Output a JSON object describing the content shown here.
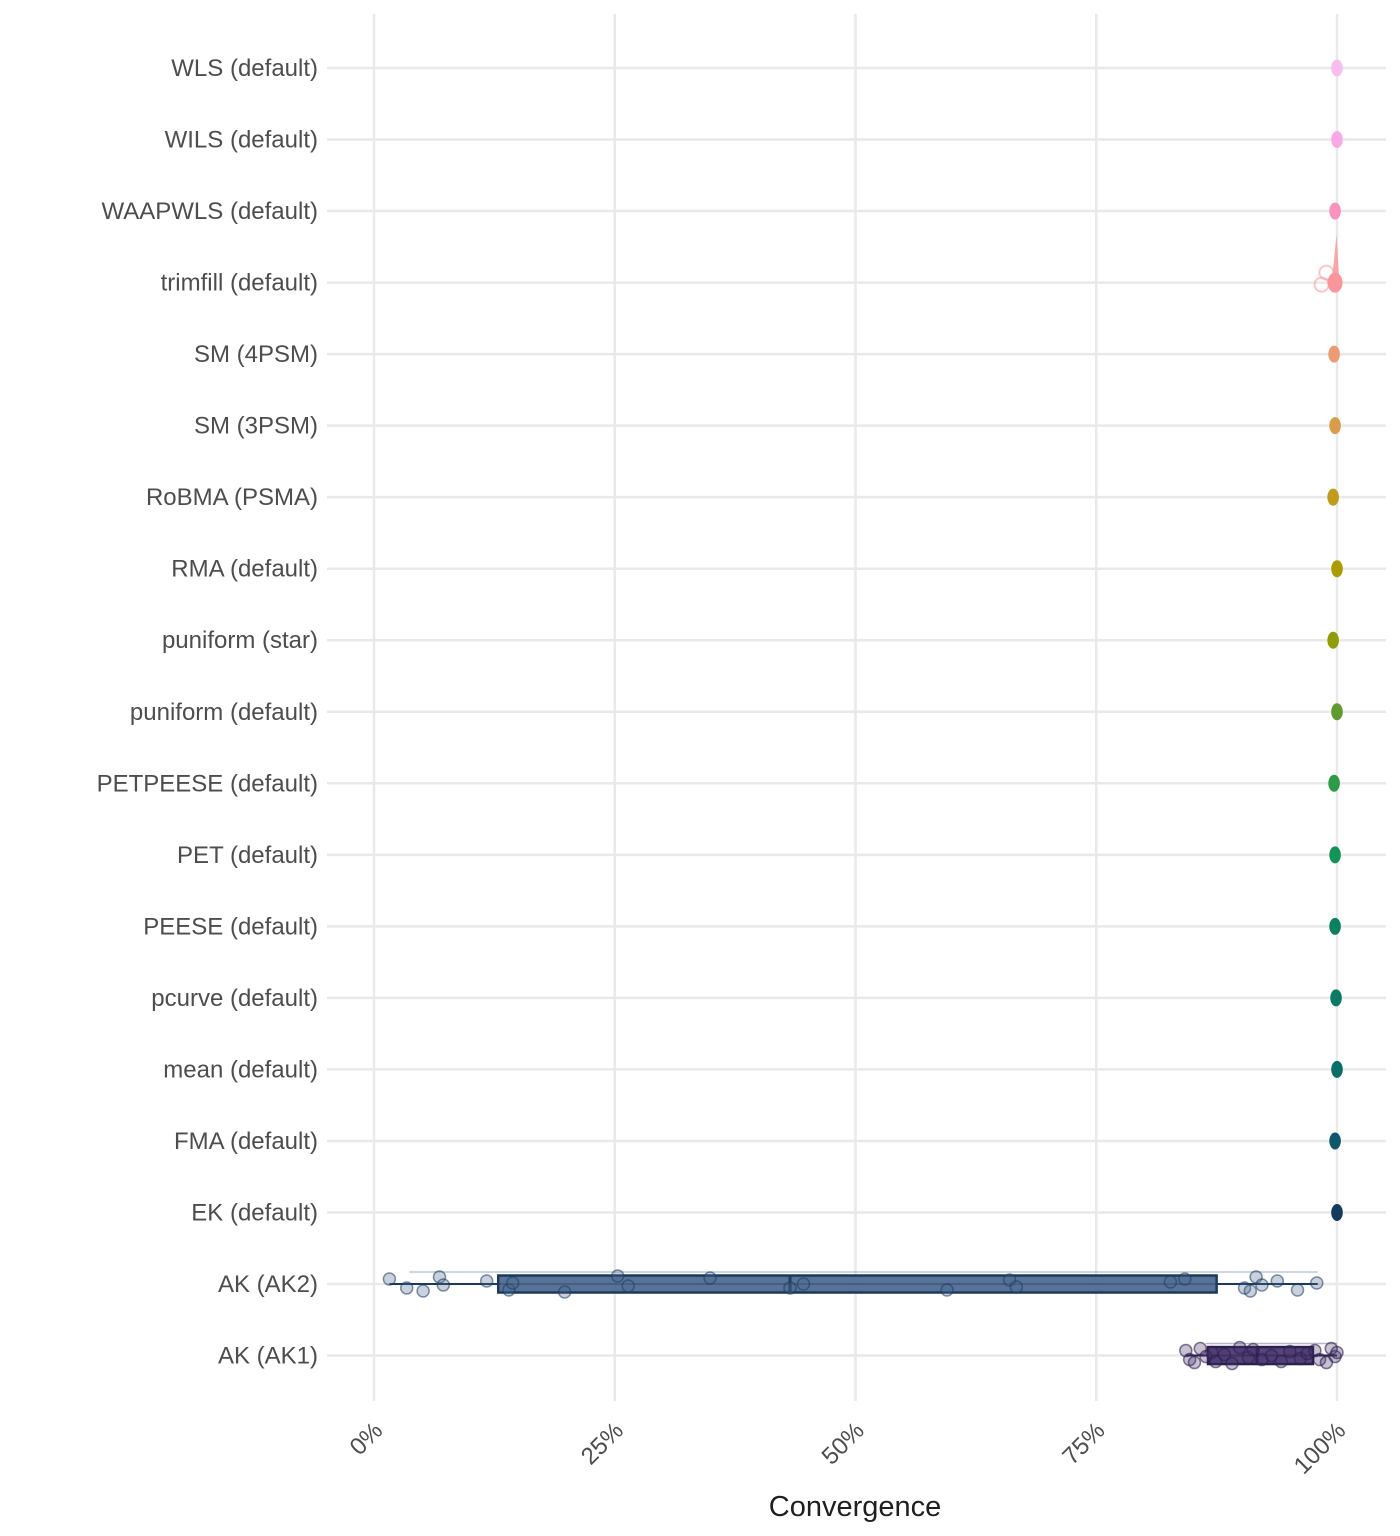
{
  "chart_data": {
    "type": "boxplot",
    "orientation": "horizontal",
    "title": "",
    "xlabel": "Convergence",
    "ylabel": "",
    "x_axis": {
      "range_pct": [
        0,
        100
      ],
      "ticks": [
        {
          "pct": 0,
          "label": "0%"
        },
        {
          "pct": 25,
          "label": "25%"
        },
        {
          "pct": 50,
          "label": "50%"
        },
        {
          "pct": 75,
          "label": "75%"
        },
        {
          "pct": 100,
          "label": "100%"
        }
      ],
      "tick_label_rotation_deg": 45,
      "grid": "major vertical + one horizontal line per category"
    },
    "colors": {
      "gridline": "#e9e9e9",
      "axis_text": "#4d4d4d",
      "axis_title": "#1f1f1f"
    },
    "rows": [
      {
        "label": "WLS (default)",
        "mark": "point",
        "color": "#f7bdee",
        "value_pct": 100
      },
      {
        "label": "WILS (default)",
        "mark": "point",
        "color": "#fba8e6",
        "value_pct": 100
      },
      {
        "label": "WAAPWLS (default)",
        "mark": "point",
        "color": "#f893c0",
        "value_pct": 99.8
      },
      {
        "label": "trimfill (default)",
        "mark": "point_with_density_tail",
        "color": "#f9969c",
        "value_pct": 99.8,
        "extra_points_pct": [
          98.4,
          98.9
        ],
        "tail_note": "narrow density spike rising above the point"
      },
      {
        "label": "SM (4PSM)",
        "mark": "point",
        "color": "#ec9b74",
        "value_pct": 99.7
      },
      {
        "label": "SM (3PSM)",
        "mark": "point",
        "color": "#d99d4b",
        "value_pct": 99.8
      },
      {
        "label": "RoBMA (PSMA)",
        "mark": "point",
        "color": "#bf9c1b",
        "value_pct": 99.6
      },
      {
        "label": "RMA (default)",
        "mark": "point",
        "color": "#ab9b00",
        "value_pct": 100
      },
      {
        "label": "puniform (star)",
        "mark": "point",
        "color": "#909d07",
        "value_pct": 99.6
      },
      {
        "label": "puniform (default)",
        "mark": "point",
        "color": "#5e9c2f",
        "value_pct": 100
      },
      {
        "label": "PETPEESE (default)",
        "mark": "point",
        "color": "#2f9b47",
        "value_pct": 99.7
      },
      {
        "label": "PET (default)",
        "mark": "point",
        "color": "#129357",
        "value_pct": 99.8
      },
      {
        "label": "PEESE (default)",
        "mark": "point",
        "color": "#0c8060",
        "value_pct": 99.8
      },
      {
        "label": "pcurve (default)",
        "mark": "point",
        "color": "#0c7a63",
        "value_pct": 99.9
      },
      {
        "label": "mean (default)",
        "mark": "point",
        "color": "#0a6f68",
        "value_pct": 100
      },
      {
        "label": "FMA (default)",
        "mark": "point",
        "color": "#0f566b",
        "value_pct": 99.8
      },
      {
        "label": "EK (default)",
        "mark": "point",
        "color": "#163a5e",
        "value_pct": 100
      },
      {
        "label": "AK (AK2)",
        "mark": "boxplot_with_jitter",
        "color": "#46648c",
        "border_color": "#1c3a5e",
        "box_pct": {
          "whisker_low": 1.6,
          "q1": 12.9,
          "median": 43.2,
          "q3": 87.5,
          "whisker_high": 98.0
        },
        "points_pct": [
          1.6,
          3.4,
          5.1,
          6.8,
          7.2,
          11.7,
          14.0,
          14.4,
          19.8,
          25.3,
          26.4,
          34.9,
          43.2,
          44.6,
          59.5,
          66.0,
          66.7,
          82.7,
          84.2,
          90.4,
          91.0,
          91.6,
          92.2,
          93.8,
          95.9,
          97.9
        ]
      },
      {
        "label": "AK (AK1)",
        "mark": "boxplot_with_jitter",
        "color": "#443169",
        "border_color": "#2c2050",
        "box_pct": {
          "whisker_low": 84.3,
          "q1": 86.6,
          "median": 91.7,
          "q3": 97.5,
          "whisker_high": 100
        },
        "points_pct": [
          84.3,
          84.7,
          85.2,
          85.8,
          86.4,
          87.0,
          87.4,
          88.3,
          89.1,
          89.9,
          90.8,
          91.3,
          92.2,
          93.2,
          94.2,
          95.1,
          96.2,
          96.9,
          97.7,
          98.2,
          98.9,
          99.4,
          99.8,
          100
        ]
      }
    ]
  }
}
